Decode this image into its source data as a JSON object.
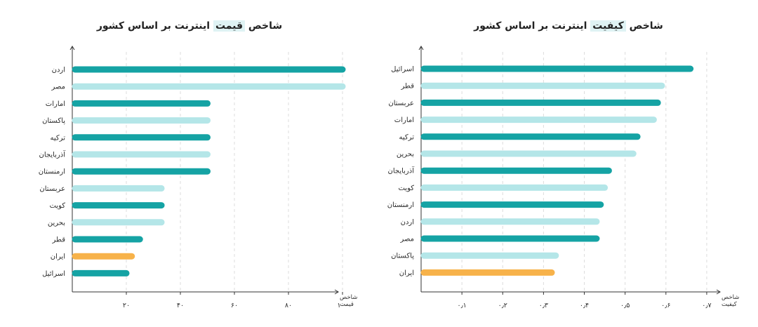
{
  "colors": {
    "dark": "#15a3a4",
    "light": "#b4e6e8",
    "highlight": "#f7b24a",
    "title_highlight": "#dff3f4"
  },
  "chart_data": [
    {
      "type": "bar",
      "orientation": "horizontal",
      "title": "شاخص قیمت اینترنت بر اساس کشور",
      "title_highlight": "قیمت",
      "title_parts": {
        "before": "شاخص ",
        "highlight": "قیمت",
        "after": " اینترنت بر اساس کشور"
      },
      "xlabel": "شاخص قیمت",
      "xlabel_lines": [
        "شاخص",
        "قیمت"
      ],
      "categories": [
        "اردن",
        "مصر",
        "امارات",
        "پاکستان",
        "ترکیه",
        "آذربایجان",
        "ارمنستان",
        "عربستان",
        "کویت",
        "بحرین",
        "قطر",
        "ایران",
        "اسرائیل"
      ],
      "values": [
        100,
        100,
        50,
        50,
        50,
        50,
        50,
        33,
        33,
        33,
        25,
        22,
        20
      ],
      "bar_colors": [
        "dark",
        "light",
        "dark",
        "light",
        "dark",
        "light",
        "dark",
        "light",
        "dark",
        "light",
        "dark",
        "highlight",
        "dark"
      ],
      "xticks": [
        20,
        40,
        60,
        80,
        100
      ],
      "xtick_labels": [
        "۲۰",
        "۴۰",
        "۶۰",
        "۸۰",
        "۱۰۰"
      ],
      "xlim": [
        0,
        120
      ],
      "grid": true
    },
    {
      "type": "bar",
      "orientation": "horizontal",
      "title": "شاخص کیفیت اینترنت بر اساس کشور",
      "title_highlight": "کیفیت",
      "title_parts": {
        "before": "شاخص ",
        "highlight": "کیفیت",
        "after": " اینترنت بر اساس کشور"
      },
      "xlabel": "شاخص کیفیت",
      "xlabel_lines": [
        "شاخص",
        "کیفیت"
      ],
      "categories": [
        "اسرائیل",
        "قطر",
        "عربستان",
        "امارات",
        "ترکیه",
        "بحرین",
        "آذربایجان",
        "کویت",
        "ارمنستان",
        "اردن",
        "مصر",
        "پاکستان",
        "ایران"
      ],
      "values": [
        0.66,
        0.59,
        0.58,
        0.57,
        0.53,
        0.52,
        0.46,
        0.45,
        0.44,
        0.43,
        0.43,
        0.33,
        0.32
      ],
      "bar_colors": [
        "dark",
        "light",
        "dark",
        "light",
        "dark",
        "light",
        "dark",
        "light",
        "dark",
        "light",
        "dark",
        "light",
        "highlight"
      ],
      "xticks": [
        0.1,
        0.2,
        0.3,
        0.4,
        0.5,
        0.6,
        0.7
      ],
      "xtick_labels": [
        "۰٫۱",
        "۰٫۲",
        "۰٫۳",
        "۰٫۴",
        "۰٫۵",
        "۰٫۶",
        "۰٫۷"
      ],
      "xlim": [
        0,
        0.75
      ],
      "grid": true
    }
  ]
}
